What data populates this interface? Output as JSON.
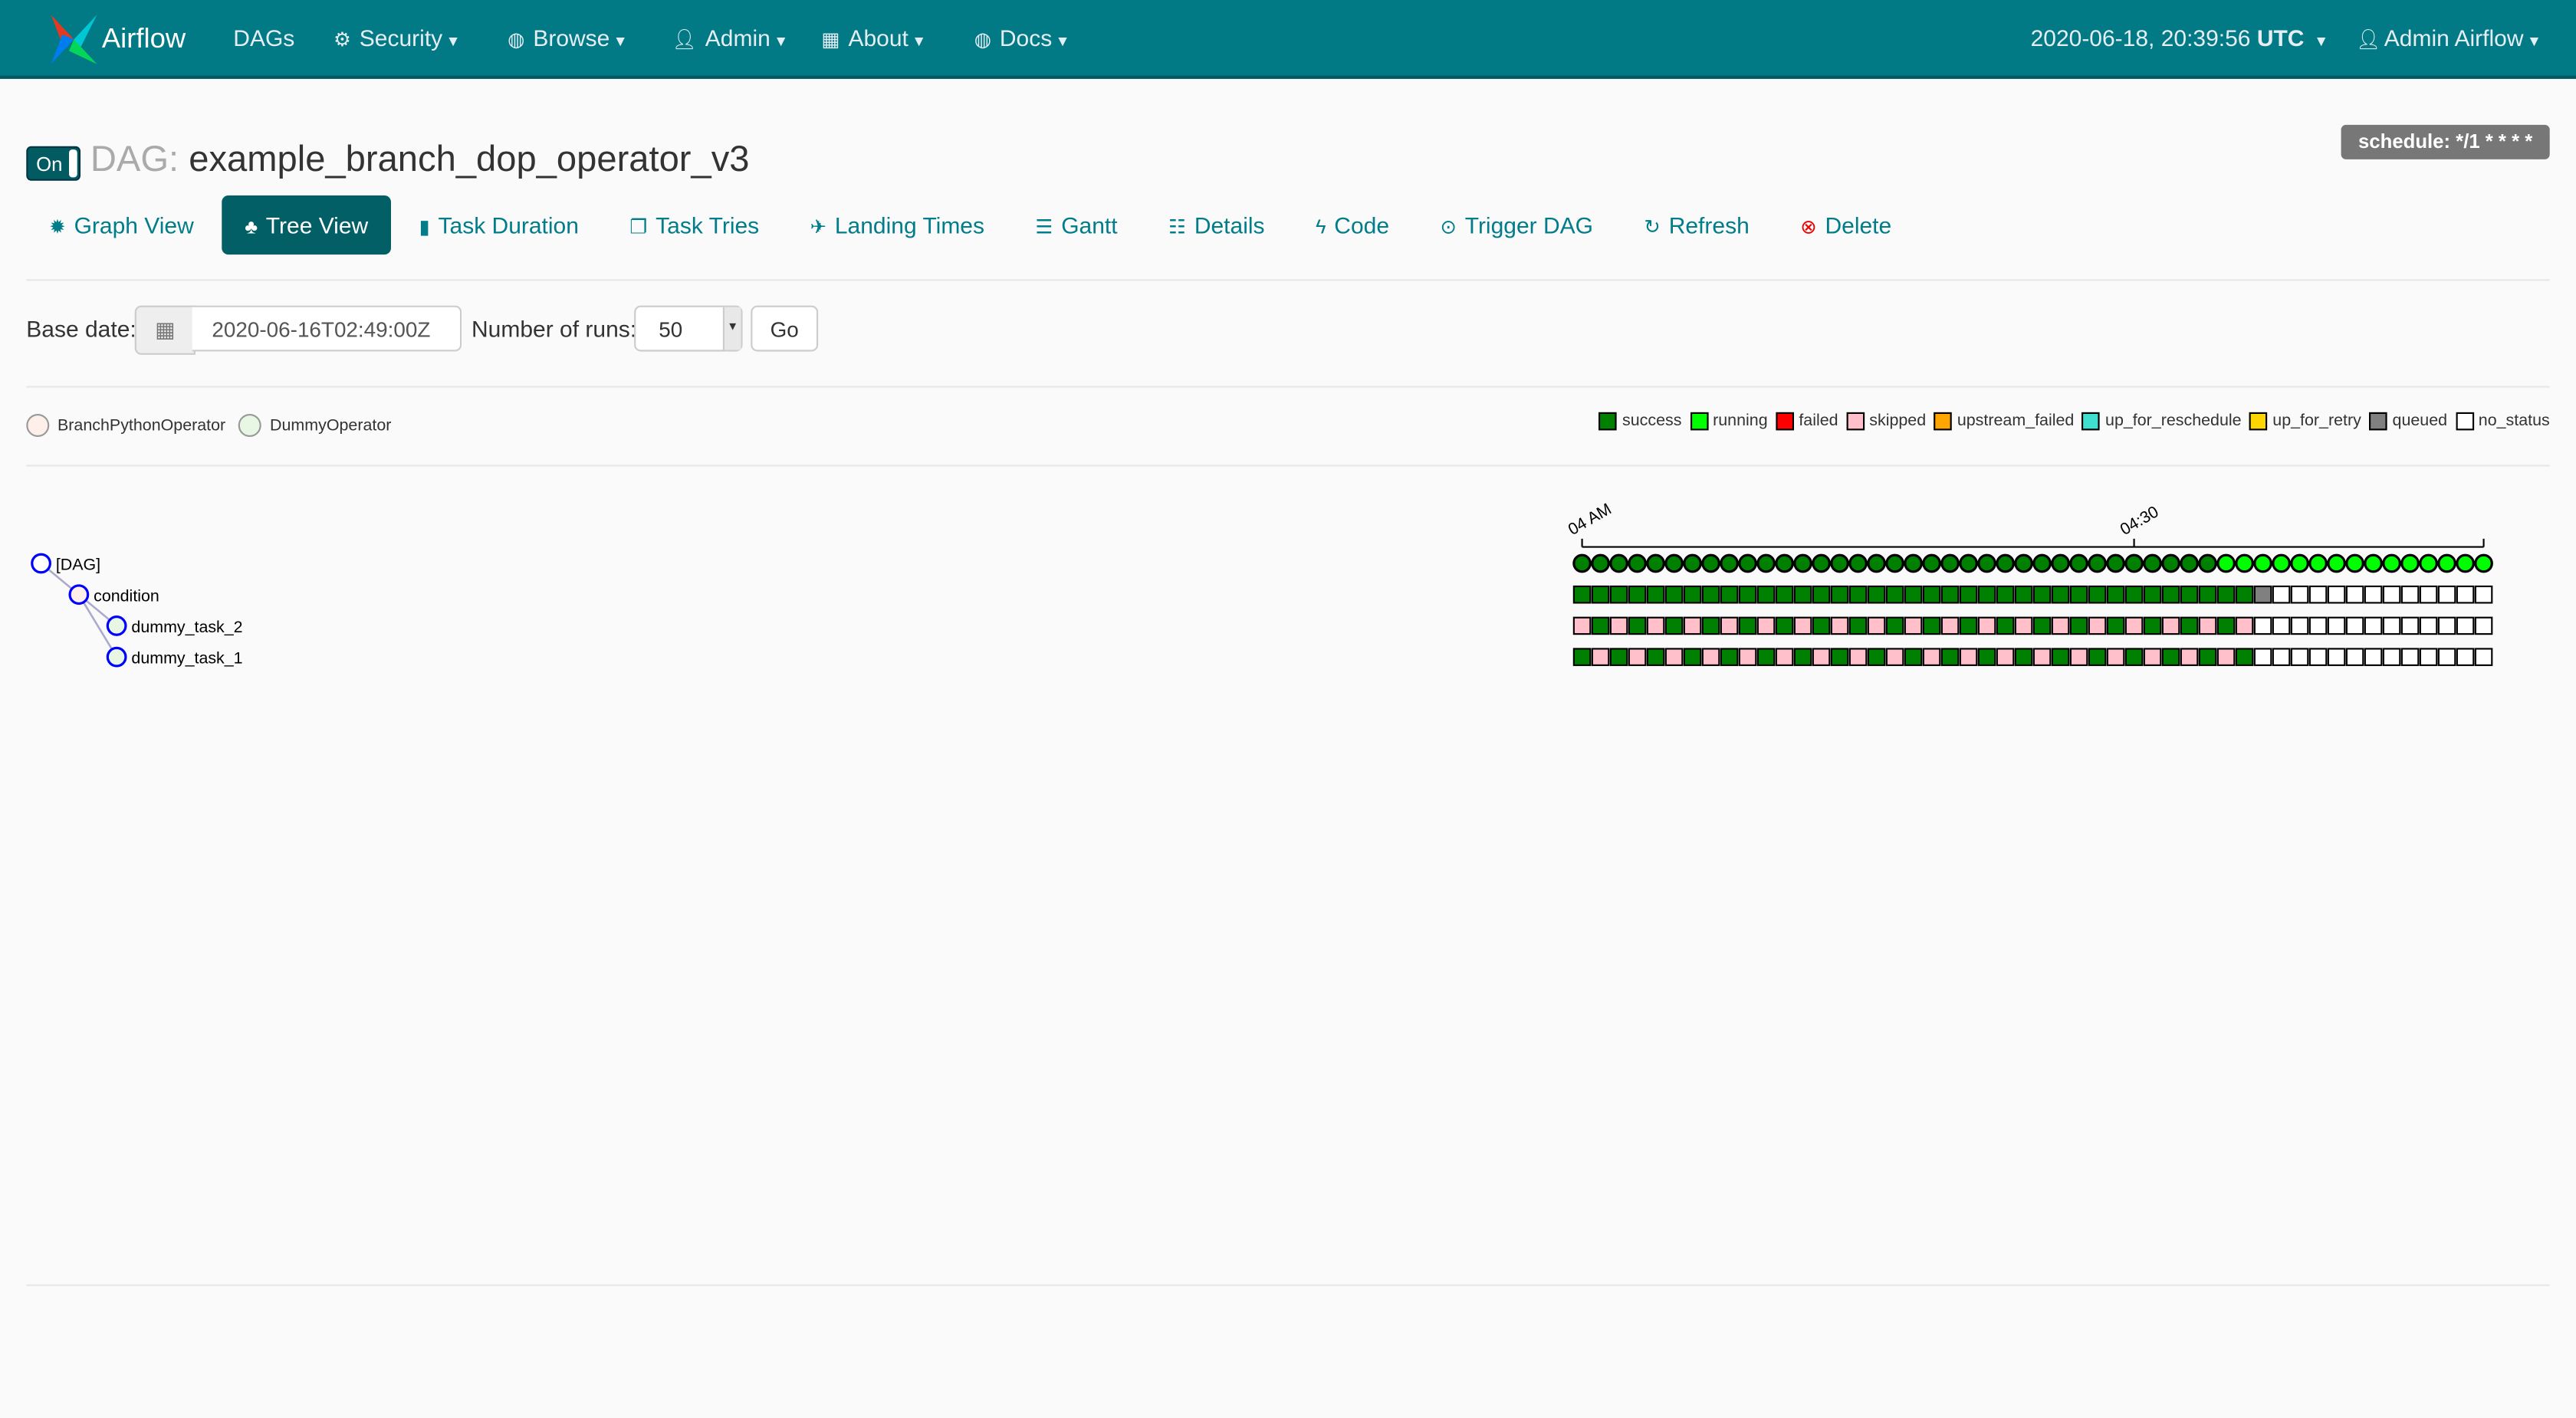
{
  "navbar": {
    "brand": "Airflow",
    "items": [
      {
        "label": "DAGs",
        "icon": ""
      },
      {
        "label": "Security",
        "icon": "cogs-icon"
      },
      {
        "label": "Browse",
        "icon": "globe-icon"
      },
      {
        "label": "Admin",
        "icon": "user-icon"
      },
      {
        "label": "About",
        "icon": "grid-icon"
      },
      {
        "label": "Docs",
        "icon": "globe-icon"
      }
    ],
    "clock": "2020-06-18, 20:39:56",
    "timezone": "UTC",
    "user": "Admin Airflow",
    "color": "#017a85"
  },
  "dag": {
    "toggle_label": "On",
    "title_prefix": "DAG:",
    "dag_id": "example_branch_dop_operator_v3",
    "schedule": "schedule: */1 * * * *"
  },
  "tabs": [
    {
      "label": "Graph View",
      "icon": "sun-icon"
    },
    {
      "label": "Tree View",
      "icon": "tree-icon",
      "active": true
    },
    {
      "label": "Task Duration",
      "icon": "bar-chart-icon"
    },
    {
      "label": "Task Tries",
      "icon": "files-icon"
    },
    {
      "label": "Landing Times",
      "icon": "plane-icon"
    },
    {
      "label": "Gantt",
      "icon": "align-left-icon"
    },
    {
      "label": "Details",
      "icon": "list-icon"
    },
    {
      "label": "Code",
      "icon": "flash-icon"
    },
    {
      "label": "Trigger DAG",
      "icon": "play-circle-icon"
    },
    {
      "label": "Refresh",
      "icon": "refresh-icon"
    },
    {
      "label": "Delete",
      "icon": "remove-circle-icon"
    }
  ],
  "form": {
    "base_date_label": "Base date:",
    "base_date_value": "2020-06-16T02:49:00Z",
    "num_runs_label": "Number of runs:",
    "num_runs_value": "50",
    "go_label": "Go"
  },
  "operator_legend": [
    {
      "label": "BranchPythonOperator",
      "color": "#ffefeb"
    },
    {
      "label": "DummyOperator",
      "color": "#e8f7e4"
    }
  ],
  "state_legend": [
    {
      "label": "success",
      "color": "#008000"
    },
    {
      "label": "running",
      "color": "#00ff00"
    },
    {
      "label": "failed",
      "color": "#ff0000"
    },
    {
      "label": "skipped",
      "color": "#ffc0cb"
    },
    {
      "label": "upstream_failed",
      "color": "#ffa500"
    },
    {
      "label": "up_for_reschedule",
      "color": "#40e0d0"
    },
    {
      "label": "up_for_retry",
      "color": "#ffd700"
    },
    {
      "label": "queued",
      "color": "#808080"
    },
    {
      "label": "no_status",
      "color": "#ffffff"
    }
  ],
  "tree": {
    "axis_ticks": [
      "04 AM",
      "04:30"
    ],
    "nodes": [
      {
        "label": "[DAG]",
        "depth": 0,
        "fill": "#ffffff"
      },
      {
        "label": "condition",
        "depth": 1,
        "fill": "#ffefeb"
      },
      {
        "label": "dummy_task_2",
        "depth": 2,
        "fill": "#e8f7e4"
      },
      {
        "label": "dummy_task_1",
        "depth": 2,
        "fill": "#e8f7e4"
      }
    ],
    "runs": [
      [
        "success",
        "success",
        "success",
        "success",
        "success",
        "success",
        "success",
        "success",
        "success",
        "success",
        "success",
        "success",
        "success",
        "success",
        "success",
        "success",
        "success",
        "success",
        "success",
        "success",
        "success",
        "success",
        "success",
        "success",
        "success",
        "success",
        "success",
        "success",
        "success",
        "success",
        "success",
        "success",
        "success",
        "success",
        "success",
        "running",
        "running",
        "running",
        "running",
        "running",
        "running",
        "running",
        "running",
        "running",
        "running",
        "running",
        "running",
        "running",
        "running",
        "running"
      ],
      [
        "success",
        "success",
        "success",
        "success",
        "success",
        "success",
        "success",
        "success",
        "success",
        "success",
        "success",
        "success",
        "success",
        "success",
        "success",
        "success",
        "success",
        "success",
        "success",
        "success",
        "success",
        "success",
        "success",
        "success",
        "success",
        "success",
        "success",
        "success",
        "success",
        "success",
        "success",
        "success",
        "success",
        "success",
        "success",
        "success",
        "success",
        "queued",
        "no_status",
        "no_status",
        "no_status",
        "no_status",
        "no_status",
        "no_status",
        "no_status",
        "no_status",
        "no_status",
        "no_status",
        "no_status",
        "no_status"
      ],
      [
        "skipped",
        "success",
        "skipped",
        "success",
        "skipped",
        "success",
        "skipped",
        "success",
        "skipped",
        "success",
        "skipped",
        "success",
        "skipped",
        "success",
        "skipped",
        "success",
        "skipped",
        "success",
        "skipped",
        "success",
        "skipped",
        "success",
        "skipped",
        "success",
        "skipped",
        "success",
        "skipped",
        "success",
        "skipped",
        "success",
        "skipped",
        "success",
        "skipped",
        "success",
        "skipped",
        "success",
        "skipped",
        "no_status",
        "no_status",
        "no_status",
        "no_status",
        "no_status",
        "no_status",
        "no_status",
        "no_status",
        "no_status",
        "no_status",
        "no_status",
        "no_status",
        "no_status"
      ],
      [
        "success",
        "skipped",
        "success",
        "skipped",
        "success",
        "skipped",
        "success",
        "skipped",
        "success",
        "skipped",
        "success",
        "skipped",
        "success",
        "skipped",
        "success",
        "skipped",
        "success",
        "skipped",
        "success",
        "skipped",
        "success",
        "skipped",
        "success",
        "skipped",
        "success",
        "skipped",
        "success",
        "skipped",
        "success",
        "skipped",
        "success",
        "skipped",
        "success",
        "skipped",
        "success",
        "skipped",
        "success",
        "no_status",
        "no_status",
        "no_status",
        "no_status",
        "no_status",
        "no_status",
        "no_status",
        "no_status",
        "no_status",
        "no_status",
        "no_status",
        "no_status",
        "no_status"
      ]
    ]
  }
}
